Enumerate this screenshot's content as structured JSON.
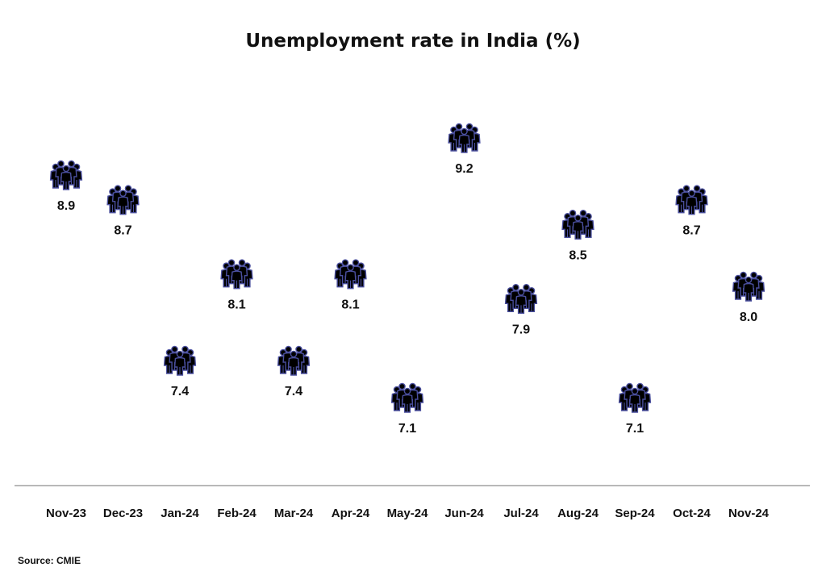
{
  "chart_data": {
    "type": "scatter",
    "title": "Unemployment rate in India (%)",
    "xlabel": "",
    "ylabel": "",
    "categories": [
      "Nov-23",
      "Dec-23",
      "Jan-24",
      "Feb-24",
      "Mar-24",
      "Apr-24",
      "May-24",
      "Jun-24",
      "Jul-24",
      "Aug-24",
      "Sep-24",
      "Oct-24",
      "Nov-24"
    ],
    "values": [
      8.9,
      8.7,
      7.4,
      8.1,
      7.4,
      8.1,
      7.1,
      9.2,
      7.9,
      8.5,
      7.1,
      8.7,
      8.0
    ],
    "value_labels": [
      "8.9",
      "8.7",
      "7.4",
      "8.1",
      "7.4",
      "8.1",
      "7.1",
      "9.2",
      "7.9",
      "8.5",
      "7.1",
      "8.7",
      "8.0"
    ],
    "grid": false,
    "legend": "none",
    "marker_icon": "people-group-icon",
    "marker_color": "#4a4f9e",
    "axis_color": "#a0a0a0"
  },
  "source": "Source:  CMIE"
}
